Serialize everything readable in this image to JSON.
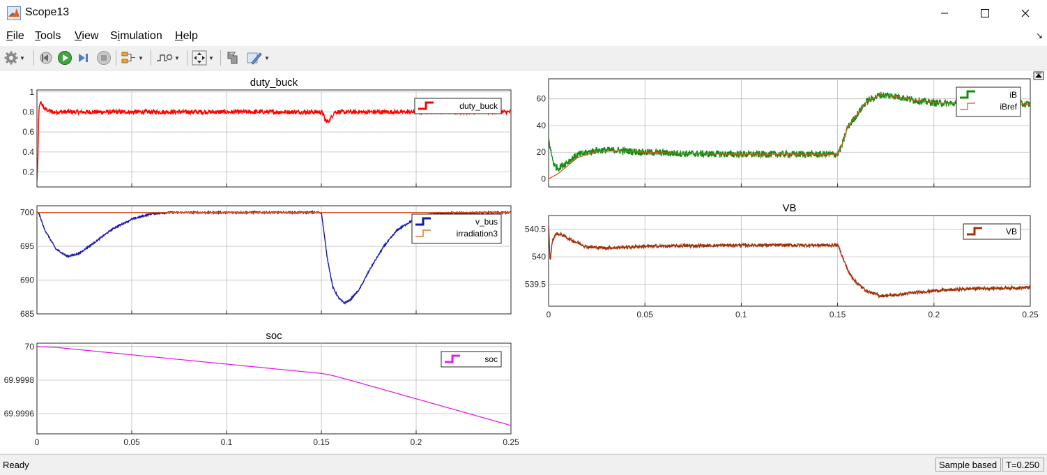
{
  "window": {
    "title": "Scope13",
    "minimize_icon": "minimize-icon",
    "maximize_icon": "maximize-icon",
    "close_icon": "close-icon"
  },
  "menu": [
    "File",
    "Tools",
    "View",
    "Simulation",
    "Help"
  ],
  "menu_access_keys": [
    "F",
    "T",
    "V",
    "i",
    "H"
  ],
  "toolbar": {
    "icons": [
      "gear-icon",
      "step-back-icon",
      "run-icon",
      "step-forward-icon",
      "stop-icon",
      "signal-layout-icon",
      "trigger-icon",
      "zoom-fit-icon",
      "cursor-measure-icon",
      "highlight-block-icon"
    ]
  },
  "status": {
    "ready": "Ready",
    "mode": "Sample based",
    "time": "T=0.250"
  },
  "chart_data": [
    {
      "id": "duty_buck",
      "type": "line",
      "title": "duty_buck",
      "xlim": [
        0,
        0.25
      ],
      "ylim": [
        0.05,
        1.02
      ],
      "xticks": [
        0,
        0.05,
        0.1,
        0.15,
        0.2,
        0.25
      ],
      "yticks": [
        0.2,
        0.4,
        0.6,
        0.8,
        1
      ],
      "ytick_labels": [
        "0.2",
        "0.4",
        "0.6",
        "0.8",
        "1"
      ],
      "show_x_tick_labels": false,
      "grid": true,
      "legend_position": "top-right",
      "series": [
        {
          "name": "duty_buck",
          "color": "#ff0000",
          "noise": 0.022,
          "points": [
            [
              0,
              0.1
            ],
            [
              0.0005,
              0.3
            ],
            [
              0.001,
              0.82
            ],
            [
              0.002,
              0.9
            ],
            [
              0.004,
              0.83
            ],
            [
              0.008,
              0.8
            ],
            [
              0.15,
              0.8
            ],
            [
              0.151,
              0.78
            ],
            [
              0.152,
              0.72
            ],
            [
              0.1535,
              0.7
            ],
            [
              0.155,
              0.74
            ],
            [
              0.157,
              0.8
            ],
            [
              0.25,
              0.8
            ]
          ]
        }
      ]
    },
    {
      "id": "v_bus",
      "type": "line",
      "title": "",
      "xlim": [
        0,
        0.25
      ],
      "ylim": [
        685,
        701
      ],
      "xticks": [
        0,
        0.05,
        0.1,
        0.15,
        0.2,
        0.25
      ],
      "yticks": [
        685,
        690,
        695,
        700
      ],
      "ytick_labels": [
        "685",
        "690",
        "695",
        "700"
      ],
      "show_x_tick_labels": false,
      "grid": true,
      "legend_position": "top-right",
      "series": [
        {
          "name": "v_bus",
          "color": "#1414b4",
          "noise": 0.12,
          "points": [
            [
              0,
              700
            ],
            [
              0.001,
              699.9
            ],
            [
              0.004,
              697.5
            ],
            [
              0.01,
              694.6
            ],
            [
              0.016,
              693.5
            ],
            [
              0.022,
              693.9
            ],
            [
              0.03,
              695.5
            ],
            [
              0.04,
              697.6
            ],
            [
              0.05,
              699.0
            ],
            [
              0.06,
              699.8
            ],
            [
              0.07,
              700
            ],
            [
              0.15,
              700
            ],
            [
              0.1505,
              699
            ],
            [
              0.153,
              693.5
            ],
            [
              0.156,
              689
            ],
            [
              0.159,
              687.4
            ],
            [
              0.162,
              686.6
            ],
            [
              0.165,
              687
            ],
            [
              0.17,
              688.6
            ],
            [
              0.176,
              691.8
            ],
            [
              0.183,
              695
            ],
            [
              0.19,
              697.4
            ],
            [
              0.2,
              699.2
            ],
            [
              0.21,
              699.9
            ],
            [
              0.25,
              700
            ]
          ]
        },
        {
          "name": "irradiation3",
          "color": "#d95319",
          "noise": 0,
          "points": [
            [
              0,
              700
            ],
            [
              0.25,
              700
            ]
          ]
        }
      ]
    },
    {
      "id": "soc",
      "type": "line",
      "title": "soc",
      "xlim": [
        0,
        0.25
      ],
      "ylim": [
        69.99948,
        70.00002
      ],
      "xticks": [
        0,
        0.05,
        0.1,
        0.15,
        0.2,
        0.25
      ],
      "xtick_labels": [
        "0",
        "0.05",
        "0.1",
        "0.15",
        "0.2",
        "0.25"
      ],
      "yticks": [
        69.9996,
        69.9998,
        70
      ],
      "ytick_labels": [
        "69.9996",
        "69.9998",
        "70"
      ],
      "show_x_tick_labels": true,
      "grid": true,
      "legend_position": "top-right",
      "series": [
        {
          "name": "soc",
          "color": "#e61ee6",
          "noise": 0,
          "points": [
            [
              0,
              70.0
            ],
            [
              0.01,
              69.999995
            ],
            [
              0.15,
              69.99984
            ],
            [
              0.155,
              69.99983
            ],
            [
              0.165,
              69.9998
            ],
            [
              0.25,
              69.99953
            ]
          ]
        }
      ]
    },
    {
      "id": "iB",
      "type": "line",
      "title": "",
      "xlim": [
        0,
        0.25
      ],
      "ylim": [
        -6,
        75
      ],
      "xticks": [
        0,
        0.05,
        0.1,
        0.15,
        0.2,
        0.25
      ],
      "yticks": [
        0,
        20,
        40,
        60
      ],
      "ytick_labels": [
        "0",
        "20",
        "40",
        "60"
      ],
      "show_x_tick_labels": false,
      "grid": true,
      "legend_position": "top-right",
      "series": [
        {
          "name": "iB",
          "color": "#148c14",
          "noise": 2.6,
          "points": [
            [
              0,
              30
            ],
            [
              0.0015,
              18
            ],
            [
              0.003,
              10
            ],
            [
              0.005,
              8
            ],
            [
              0.009,
              12
            ],
            [
              0.015,
              18
            ],
            [
              0.025,
              21.5
            ],
            [
              0.035,
              21.5
            ],
            [
              0.05,
              20
            ],
            [
              0.07,
              19
            ],
            [
              0.1,
              18.5
            ],
            [
              0.15,
              18.5
            ],
            [
              0.152,
              24
            ],
            [
              0.155,
              38
            ],
            [
              0.16,
              48
            ],
            [
              0.165,
              58
            ],
            [
              0.172,
              63
            ],
            [
              0.18,
              62
            ],
            [
              0.19,
              59
            ],
            [
              0.2,
              57
            ],
            [
              0.22,
              56
            ],
            [
              0.25,
              56
            ]
          ]
        },
        {
          "name": "iBref",
          "color": "#d95319",
          "noise": 0,
          "points": [
            [
              0,
              0
            ],
            [
              0.005,
              4
            ],
            [
              0.01,
              10
            ],
            [
              0.015,
              16
            ],
            [
              0.025,
              20.5
            ],
            [
              0.035,
              21
            ],
            [
              0.05,
              20
            ],
            [
              0.07,
              19
            ],
            [
              0.1,
              18.5
            ],
            [
              0.15,
              18.5
            ],
            [
              0.152,
              24
            ],
            [
              0.155,
              38
            ],
            [
              0.16,
              48
            ],
            [
              0.165,
              58
            ],
            [
              0.172,
              63
            ],
            [
              0.18,
              62
            ],
            [
              0.19,
              59
            ],
            [
              0.2,
              57
            ],
            [
              0.22,
              56
            ],
            [
              0.25,
              56
            ]
          ]
        }
      ]
    },
    {
      "id": "VB",
      "type": "line",
      "title": "VB",
      "xlim": [
        0,
        0.25
      ],
      "ylim": [
        539.1,
        540.75
      ],
      "xticks": [
        0,
        0.05,
        0.1,
        0.15,
        0.2,
        0.25
      ],
      "xtick_labels": [
        "0",
        "0.05",
        "0.1",
        "0.15",
        "0.2",
        "0.25"
      ],
      "yticks": [
        539.5,
        540,
        540.5
      ],
      "ytick_labels": [
        "539.5",
        "540",
        "540.5"
      ],
      "show_x_tick_labels": true,
      "grid": true,
      "legend_position": "top-right",
      "series": [
        {
          "name": "VB",
          "color": "#a0320a",
          "noise": 0.028,
          "points": [
            [
              0,
              540.6
            ],
            [
              0.0008,
              539.9
            ],
            [
              0.002,
              540.3
            ],
            [
              0.004,
              540.42
            ],
            [
              0.007,
              540.4
            ],
            [
              0.012,
              540.3
            ],
            [
              0.02,
              540.18
            ],
            [
              0.03,
              540.16
            ],
            [
              0.05,
              540.19
            ],
            [
              0.1,
              540.21
            ],
            [
              0.15,
              540.21
            ],
            [
              0.151,
              540.15
            ],
            [
              0.153,
              539.95
            ],
            [
              0.156,
              539.7
            ],
            [
              0.16,
              539.52
            ],
            [
              0.165,
              539.38
            ],
            [
              0.172,
              539.29
            ],
            [
              0.18,
              539.3
            ],
            [
              0.19,
              539.35
            ],
            [
              0.2,
              539.38
            ],
            [
              0.22,
              539.42
            ],
            [
              0.25,
              539.44
            ]
          ]
        }
      ]
    }
  ]
}
